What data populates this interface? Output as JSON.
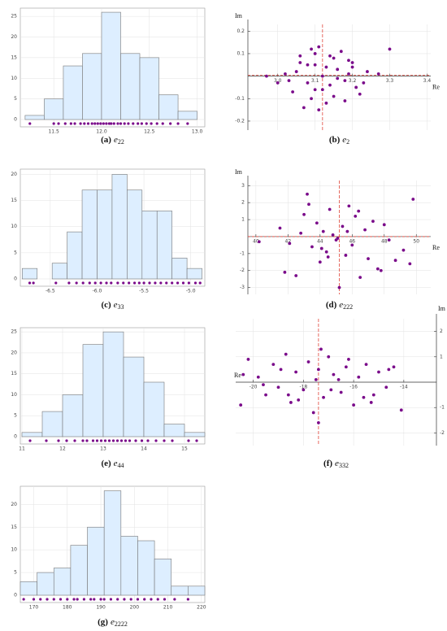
{
  "chart_data": [
    {
      "type": "histogram",
      "caption": {
        "label": "(a)",
        "var": "e",
        "sub": "22"
      },
      "bins": [
        11.2,
        11.4,
        11.6,
        11.8,
        12.0,
        12.2,
        12.4,
        12.6,
        12.8,
        13.0
      ],
      "values": [
        1,
        5,
        13,
        16,
        26,
        16,
        15,
        6,
        2
      ],
      "rug": [
        11.25,
        11.5,
        11.55,
        11.62,
        11.68,
        11.72,
        11.78,
        11.82,
        11.86,
        11.9,
        11.93,
        11.96,
        11.99,
        12.02,
        12.05,
        12.08,
        12.1,
        12.13,
        12.17,
        12.2,
        12.24,
        12.28,
        12.33,
        12.38,
        12.42,
        12.47,
        12.52,
        12.58,
        12.64,
        12.72,
        12.8,
        12.9
      ],
      "xlim": [
        11.15,
        13.08
      ],
      "ylim": [
        0,
        27
      ],
      "xticks": [
        11.5,
        {
          "value": 12,
          "label": "12.0"
        },
        12.5,
        {
          "value": 13,
          "label": "13.0"
        }
      ],
      "yticks": [
        0,
        5,
        10,
        15,
        20,
        25
      ],
      "color": "#ddeeff",
      "rug_color": "#7a0a8a",
      "grid": true
    },
    {
      "type": "scatter",
      "caption": {
        "label": "(b)",
        "var": "e",
        "sub": "2"
      },
      "xlabel": "Re",
      "ylabel": "Im",
      "y_axis_side": "left",
      "x": [
        3.05,
        3.08,
        3.1,
        3.12,
        3.15,
        3.18,
        3.2,
        3.22,
        3.0,
        3.02,
        3.06,
        3.09,
        3.11,
        3.13,
        3.16,
        3.19,
        3.21,
        3.24,
        3.27,
        3.07,
        3.1,
        3.14,
        3.17,
        3.04,
        3.12,
        3.15,
        3.2,
        3.08,
        3.03,
        3.13,
        3.18,
        3.11,
        3.09,
        3.16,
        3.23,
        2.97,
        3.06,
        3.14,
        3.19,
        3.1,
        3.3
      ],
      "y": [
        0.02,
        -0.03,
        0.05,
        -0.06,
        0.08,
        -0.02,
        0.04,
        -0.08,
        -0.03,
        0.01,
        0.09,
        -0.1,
        0.13,
        -0.12,
        0.03,
        0.07,
        -0.05,
        0.02,
        0.01,
        -0.14,
        0.1,
        -0.04,
        0.11,
        -0.07,
        0.0,
        -0.09,
        0.06,
        0.05,
        -0.02,
        0.04,
        -0.11,
        -0.15,
        0.12,
        -0.01,
        -0.03,
        0.0,
        0.06,
        0.09,
        0.01,
        -0.06,
        0.12
      ],
      "ref_x": 3.12,
      "ref_y": 0.004,
      "xlim": [
        2.92,
        3.41
      ],
      "ylim": [
        -0.24,
        0.23
      ],
      "xticks": [
        {
          "value": 3,
          "label": "3.0"
        },
        3.1,
        3.2,
        3.3,
        3.4
      ],
      "yticks": [
        0.2,
        0.1,
        -0.1,
        -0.2
      ],
      "color": "#7a0a8a",
      "ref_color": "#e0453a",
      "grid": true
    },
    {
      "type": "histogram",
      "caption": {
        "label": "(c)",
        "var": "e",
        "sub": "33"
      },
      "bins": [
        -6.8,
        -6.64,
        -6.48,
        -6.32,
        -6.16,
        -6.0,
        -5.84,
        -5.68,
        -5.52,
        -5.36,
        -5.2,
        -5.04,
        -4.88
      ],
      "values": [
        2,
        0,
        3,
        9,
        17,
        17,
        20,
        17,
        13,
        13,
        4,
        2
      ],
      "rug": [
        -6.72,
        -6.68,
        -6.44,
        -6.3,
        -6.22,
        -6.15,
        -6.08,
        -6.02,
        -5.96,
        -5.9,
        -5.85,
        -5.78,
        -5.72,
        -5.66,
        -5.6,
        -5.55,
        -5.5,
        -5.44,
        -5.38,
        -5.32,
        -5.26,
        -5.2,
        -5.14,
        -5.08,
        -5.02,
        -4.95,
        -4.9
      ],
      "xlim": [
        -6.82,
        -4.85
      ],
      "ylim": [
        0,
        21
      ],
      "xticks": [
        -6.5,
        {
          "value": -6,
          "label": "-6.0"
        },
        -5.5,
        {
          "value": -5,
          "label": "-5.0"
        }
      ],
      "yticks": [
        0,
        5,
        10,
        15,
        20
      ],
      "color": "#ddeeff",
      "rug_color": "#7a0a8a",
      "grid": true
    },
    {
      "type": "scatter",
      "caption": {
        "label": "(d)",
        "var": "e",
        "sub": "222"
      },
      "xlabel": "Re",
      "ylabel": "Im",
      "y_axis_side": "left",
      "x": [
        40.2,
        41.5,
        41.8,
        42.1,
        42.5,
        43.0,
        43.2,
        43.5,
        43.8,
        44.0,
        44.2,
        44.4,
        44.6,
        44.8,
        45.0,
        45.2,
        45.4,
        45.6,
        45.8,
        46.0,
        46.2,
        46.5,
        46.8,
        47.0,
        47.3,
        47.6,
        48.0,
        48.3,
        48.7,
        49.2,
        49.6,
        43.3,
        44.5,
        45.1,
        46.4,
        47.8,
        42.8,
        44.1,
        45.7,
        49.8
      ],
      "y": [
        -0.3,
        0.5,
        -2.1,
        -0.4,
        -2.3,
        1.3,
        2.5,
        -0.6,
        0.8,
        -1.5,
        0.3,
        -0.9,
        1.6,
        0.1,
        -0.2,
        -3.0,
        0.6,
        -1.1,
        1.8,
        -0.5,
        1.2,
        -2.4,
        0.4,
        -1.3,
        0.9,
        -1.9,
        0.7,
        -0.2,
        -1.4,
        -0.8,
        -1.6,
        1.9,
        -1.2,
        -0.1,
        1.5,
        -2.0,
        0.2,
        -0.7,
        0.3,
        2.2
      ],
      "ref_x": 45.2,
      "ref_y": 0,
      "xlim": [
        39.5,
        50.9
      ],
      "ylim": [
        -3.4,
        3.3
      ],
      "xticks": [
        40,
        42,
        44,
        46,
        48,
        50
      ],
      "yticks": [
        3,
        2,
        1,
        -1,
        -2,
        -3
      ],
      "color": "#7a0a8a",
      "ref_color": "#e0453a",
      "grid": true
    },
    {
      "type": "histogram",
      "caption": {
        "label": "(e)",
        "var": "e",
        "sub": "44"
      },
      "bins": [
        11,
        11.5,
        12,
        12.5,
        13,
        13.5,
        14,
        14.5,
        15,
        15.5
      ],
      "values": [
        1,
        6,
        10,
        22,
        25,
        19,
        13,
        3,
        1
      ],
      "rug": [
        11.2,
        11.6,
        11.9,
        12.1,
        12.3,
        12.5,
        12.6,
        12.75,
        12.85,
        12.95,
        13.05,
        13.15,
        13.25,
        13.35,
        13.45,
        13.55,
        13.65,
        13.8,
        13.95,
        14.1,
        14.3,
        14.5,
        14.7,
        15.1,
        15.3
      ],
      "xlim": [
        10.96,
        15.5
      ],
      "ylim": [
        0,
        26
      ],
      "xticks": [
        11,
        12,
        13,
        14,
        15
      ],
      "yticks": [
        0,
        5,
        10,
        15,
        20,
        25
      ],
      "color": "#ddeeff",
      "rug_color": "#7a0a8a",
      "grid": true
    },
    {
      "type": "scatter",
      "caption": {
        "label": "(f)",
        "var": "e",
        "sub": "332"
      },
      "xlabel": "Re",
      "ylabel": "Im",
      "y_axis_side": "right",
      "x": [
        -20.5,
        -20.2,
        -19.8,
        -19.5,
        -19.2,
        -19.0,
        -18.7,
        -18.5,
        -18.3,
        -18.0,
        -17.8,
        -17.6,
        -17.4,
        -17.2,
        -17.0,
        -16.8,
        -16.5,
        -16.3,
        -16.0,
        -15.8,
        -15.5,
        -15.2,
        -15.0,
        -14.7,
        -14.4,
        -14.1,
        -19.6,
        -18.9,
        -18.2,
        -17.5,
        -16.9,
        -16.2,
        -15.6,
        -17.4,
        -17.3,
        -14.6,
        -20.4,
        -18.6,
        -16.6,
        -15.3
      ],
      "y": [
        -0.9,
        0.9,
        0.2,
        -0.5,
        0.7,
        -0.2,
        1.1,
        -0.8,
        0.4,
        -0.3,
        0.8,
        -1.2,
        0.5,
        -0.6,
        1.0,
        0.3,
        -0.4,
        0.6,
        -0.9,
        0.2,
        0.7,
        -0.5,
        0.4,
        -0.2,
        0.6,
        -1.1,
        -0.1,
        0.5,
        -0.7,
        0.1,
        -0.3,
        0.9,
        -0.6,
        -1.6,
        1.3,
        0.5,
        0.3,
        -0.5,
        0.1,
        -0.8
      ],
      "ref_x": -17.4,
      "xlim": [
        -20.7,
        -12.7
      ],
      "ylim": [
        -2.5,
        2.5
      ],
      "xticks": [
        -20,
        -18,
        -16,
        -14
      ],
      "yticks": [
        2,
        1,
        -1,
        -2
      ],
      "color": "#7a0a8a",
      "ref_color": "#e0453a",
      "grid": true
    },
    {
      "type": "histogram",
      "caption": {
        "label": "(g)",
        "var": "e",
        "sub": "2222"
      },
      "bins": [
        166,
        171,
        176,
        181,
        186,
        191,
        196,
        201,
        206,
        211,
        216,
        221
      ],
      "values": [
        3,
        5,
        6,
        11,
        15,
        23,
        13,
        12,
        8,
        2,
        2
      ],
      "rug": [
        167,
        170,
        172,
        174,
        176,
        178,
        180,
        182,
        183,
        185,
        187,
        188,
        190,
        191,
        193,
        195,
        197,
        199,
        201,
        203,
        205,
        207,
        209,
        212,
        216
      ],
      "xlim": [
        166,
        221
      ],
      "ylim": [
        0,
        24
      ],
      "xticks": [
        170,
        180,
        190,
        200,
        210,
        220
      ],
      "yticks": [
        0,
        5,
        10,
        15,
        20
      ],
      "color": "#ddeeff",
      "rug_color": "#7a0a8a",
      "grid": true
    }
  ]
}
